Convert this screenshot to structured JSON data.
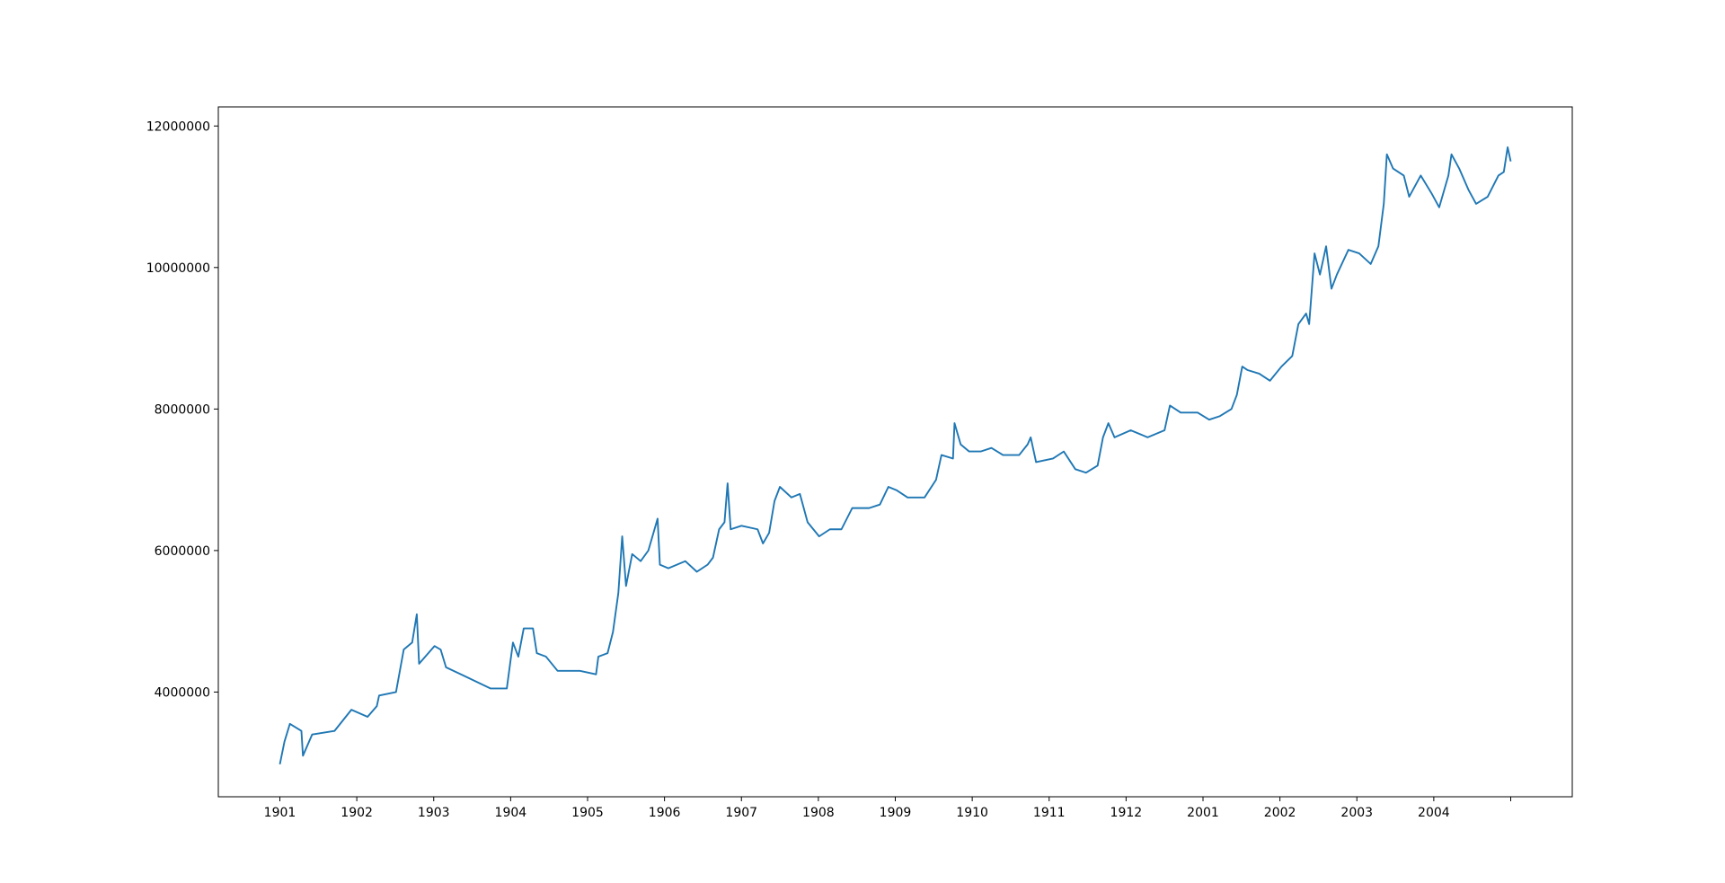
{
  "chart_data": {
    "type": "line",
    "color": "#1f77b4",
    "grid": false,
    "xlim": [
      -0.8,
      16.8
    ],
    "xticks": [
      {
        "value": 0,
        "label": "1901"
      },
      {
        "value": 1,
        "label": "1902"
      },
      {
        "value": 2,
        "label": "1903"
      },
      {
        "value": 3,
        "label": "1904"
      },
      {
        "value": 4,
        "label": "1905"
      },
      {
        "value": 5,
        "label": "1906"
      },
      {
        "value": 6,
        "label": "1907"
      },
      {
        "value": 7,
        "label": "1908"
      },
      {
        "value": 8,
        "label": "1909"
      },
      {
        "value": 9,
        "label": "1910"
      },
      {
        "value": 10,
        "label": "1911"
      },
      {
        "value": 11,
        "label": "1912"
      },
      {
        "value": 12,
        "label": "2001"
      },
      {
        "value": 13,
        "label": "2002"
      },
      {
        "value": 14,
        "label": "2003"
      },
      {
        "value": 15,
        "label": "2004"
      },
      {
        "value": 16,
        "label": null
      }
    ],
    "ylim": [
      2520000,
      12270000
    ],
    "yticks": [
      4000000,
      6000000,
      8000000,
      10000000,
      12000000
    ],
    "x": [
      0,
      0.06,
      0.13,
      0.28,
      0.3,
      0.42,
      0.71,
      0.93,
      1.14,
      1.26,
      1.29,
      1.51,
      1.61,
      1.72,
      1.78,
      1.81,
      2.01,
      2.09,
      2.16,
      2.45,
      2.74,
      2.95,
      3.03,
      3.1,
      3.17,
      3.29,
      3.34,
      3.46,
      3.61,
      3.9,
      4.11,
      4.14,
      4.26,
      4.33,
      4.4,
      4.45,
      4.5,
      4.58,
      4.69,
      4.79,
      4.87,
      4.91,
      4.94,
      5.05,
      5.27,
      5.42,
      5.56,
      5.63,
      5.71,
      5.78,
      5.82,
      5.86,
      6.0,
      6.21,
      6.28,
      6.36,
      6.43,
      6.5,
      6.65,
      6.76,
      6.86,
      7.01,
      7.15,
      7.3,
      7.44,
      7.66,
      7.8,
      7.91,
      8.02,
      8.16,
      8.38,
      8.53,
      8.6,
      8.75,
      8.77,
      8.85,
      8.96,
      9.11,
      9.25,
      9.4,
      9.61,
      9.72,
      9.76,
      9.83,
      10.05,
      10.19,
      10.34,
      10.48,
      10.63,
      10.7,
      10.77,
      10.85,
      11.06,
      11.28,
      11.5,
      11.57,
      11.71,
      11.93,
      12.08,
      12.22,
      12.37,
      12.44,
      12.51,
      12.58,
      12.73,
      12.87,
      13.02,
      13.16,
      13.24,
      13.34,
      13.38,
      13.45,
      13.52,
      13.6,
      13.67,
      13.74,
      13.89,
      14.03,
      14.18,
      14.28,
      14.35,
      14.39,
      14.47,
      14.61,
      14.68,
      14.83,
      14.97,
      15.07,
      15.19,
      15.23,
      15.33,
      15.45,
      15.55,
      15.7,
      15.84,
      15.91,
      15.96,
      16
    ],
    "values": [
      2980000,
      3300000,
      3550000,
      3450000,
      3100000,
      3400000,
      3450000,
      3750000,
      3650000,
      3800000,
      3950000,
      4000000,
      4600000,
      4700000,
      5100000,
      4400000,
      4650000,
      4600000,
      4350000,
      4200000,
      4050000,
      4050000,
      4700000,
      4500000,
      4900000,
      4900000,
      4550000,
      4500000,
      4300000,
      4300000,
      4250000,
      4500000,
      4550000,
      4850000,
      5400000,
      6200000,
      5500000,
      5950000,
      5850000,
      6000000,
      6300000,
      6450000,
      5800000,
      5750000,
      5850000,
      5700000,
      5800000,
      5900000,
      6300000,
      6400000,
      6950000,
      6300000,
      6350000,
      6300000,
      6100000,
      6250000,
      6700000,
      6900000,
      6750000,
      6800000,
      6400000,
      6200000,
      6300000,
      6300000,
      6600000,
      6600000,
      6650000,
      6900000,
      6850000,
      6750000,
      6750000,
      7000000,
      7350000,
      7300000,
      7800000,
      7500000,
      7400000,
      7400000,
      7450000,
      7350000,
      7350000,
      7500000,
      7600000,
      7250000,
      7300000,
      7400000,
      7150000,
      7100000,
      7200000,
      7600000,
      7800000,
      7600000,
      7700000,
      7600000,
      7700000,
      8050000,
      7950000,
      7950000,
      7850000,
      7900000,
      8000000,
      8200000,
      8600000,
      8550000,
      8500000,
      8400000,
      8600000,
      8750000,
      9200000,
      9350000,
      9200000,
      10200000,
      9900000,
      10300000,
      9700000,
      9900000,
      10250000,
      10200000,
      10050000,
      10300000,
      10900000,
      11600000,
      11400000,
      11300000,
      11000000,
      11300000,
      11050000,
      10850000,
      11300000,
      11600000,
      11400000,
      11100000,
      10900000,
      11000000,
      11300000,
      11350000,
      11700000,
      11500000
    ]
  }
}
